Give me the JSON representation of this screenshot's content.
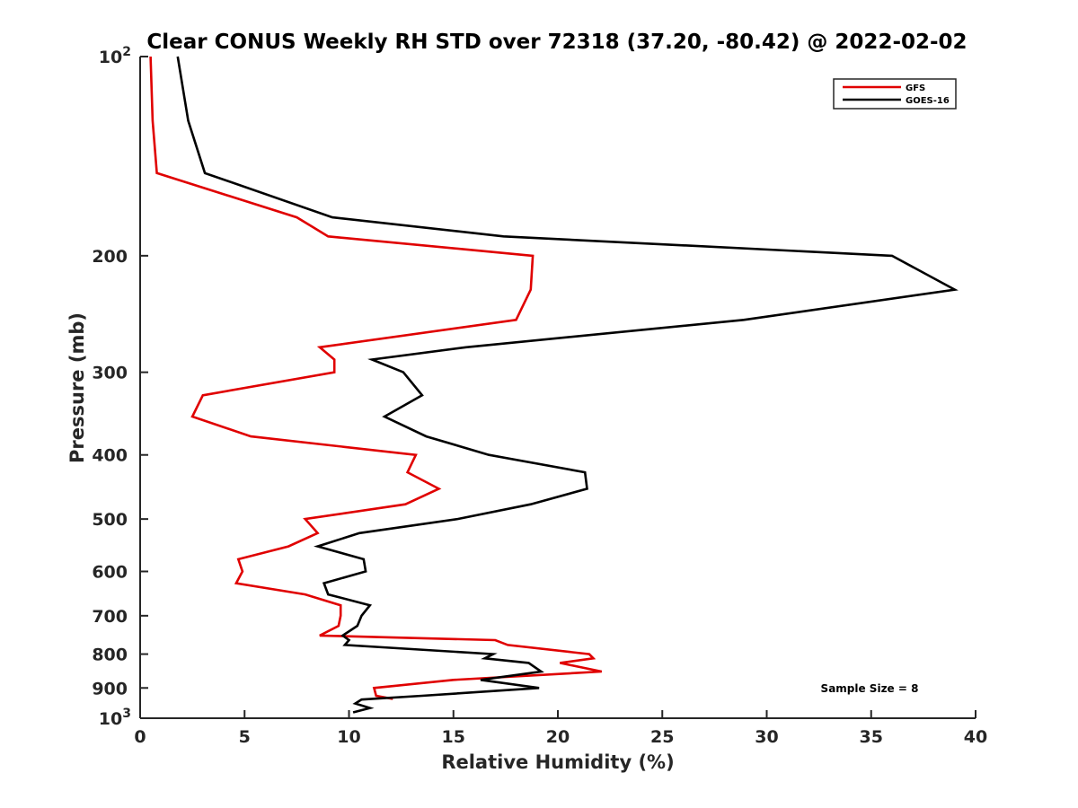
{
  "chart_data": {
    "type": "line",
    "title": "Clear CONUS Weekly RH STD over 72318 (37.20, -80.42) @ 2022-02-02",
    "xlabel": "Relative Humidity (%)",
    "ylabel": "Pressure (mb)",
    "xlim": [
      0,
      40
    ],
    "ylim": [
      100,
      1000
    ],
    "y_scale": "log",
    "y_reversed": true,
    "grid": false,
    "legend_position": "top-right",
    "x_ticks": [
      0,
      5,
      10,
      15,
      20,
      25,
      30,
      35,
      40
    ],
    "y_ticks": [
      {
        "value": 100,
        "base": "10",
        "exp": "2"
      },
      {
        "value": 200,
        "label": "200"
      },
      {
        "value": 300,
        "label": "300"
      },
      {
        "value": 400,
        "label": "400"
      },
      {
        "value": 500,
        "label": "500"
      },
      {
        "value": 600,
        "label": "600"
      },
      {
        "value": 700,
        "label": "700"
      },
      {
        "value": 800,
        "label": "800"
      },
      {
        "value": 900,
        "label": "900"
      },
      {
        "value": 1000,
        "base": "10",
        "exp": "3"
      }
    ],
    "series": [
      {
        "name": "GFS",
        "color": "#e00000",
        "points": [
          [
            0.5,
            100
          ],
          [
            0.6,
            125
          ],
          [
            0.8,
            150
          ],
          [
            7.5,
            175
          ],
          [
            9.0,
            187
          ],
          [
            18.8,
            200
          ],
          [
            18.7,
            225
          ],
          [
            18.0,
            250
          ],
          [
            8.6,
            275
          ],
          [
            9.3,
            287
          ],
          [
            9.3,
            300
          ],
          [
            3.0,
            325
          ],
          [
            2.5,
            350
          ],
          [
            5.3,
            375
          ],
          [
            13.2,
            400
          ],
          [
            12.8,
            425
          ],
          [
            14.3,
            450
          ],
          [
            12.7,
            475
          ],
          [
            7.9,
            500
          ],
          [
            8.5,
            525
          ],
          [
            7.1,
            550
          ],
          [
            4.7,
            575
          ],
          [
            4.9,
            600
          ],
          [
            4.6,
            625
          ],
          [
            7.9,
            650
          ],
          [
            9.6,
            675
          ],
          [
            9.6,
            700
          ],
          [
            9.5,
            725
          ],
          [
            8.6,
            750
          ],
          [
            17.0,
            762
          ],
          [
            17.6,
            775
          ],
          [
            21.5,
            800
          ],
          [
            21.7,
            812
          ],
          [
            20.1,
            825
          ],
          [
            22.1,
            850
          ],
          [
            15.0,
            875
          ],
          [
            11.2,
            900
          ],
          [
            11.3,
            925
          ],
          [
            12.1,
            935
          ]
        ]
      },
      {
        "name": "GOES-16",
        "color": "#000000",
        "points": [
          [
            1.8,
            100
          ],
          [
            2.3,
            125
          ],
          [
            3.1,
            150
          ],
          [
            9.2,
            175
          ],
          [
            17.4,
            187
          ],
          [
            36.0,
            200
          ],
          [
            39.0,
            225
          ],
          [
            28.9,
            250
          ],
          [
            15.6,
            275
          ],
          [
            11.1,
            287
          ],
          [
            12.6,
            300
          ],
          [
            13.5,
            325
          ],
          [
            11.7,
            350
          ],
          [
            13.7,
            375
          ],
          [
            16.7,
            400
          ],
          [
            21.3,
            425
          ],
          [
            21.4,
            450
          ],
          [
            18.7,
            475
          ],
          [
            15.2,
            500
          ],
          [
            10.5,
            525
          ],
          [
            8.5,
            550
          ],
          [
            10.7,
            575
          ],
          [
            10.8,
            600
          ],
          [
            8.8,
            625
          ],
          [
            9.0,
            650
          ],
          [
            11.0,
            675
          ],
          [
            10.6,
            700
          ],
          [
            10.4,
            725
          ],
          [
            9.7,
            750
          ],
          [
            10.0,
            762
          ],
          [
            9.8,
            775
          ],
          [
            16.9,
            800
          ],
          [
            16.5,
            812
          ],
          [
            18.6,
            825
          ],
          [
            19.2,
            850
          ],
          [
            16.3,
            875
          ],
          [
            19.1,
            900
          ],
          [
            13.5,
            925
          ],
          [
            10.6,
            937
          ],
          [
            10.3,
            950
          ],
          [
            11.0,
            965
          ],
          [
            10.2,
            980
          ]
        ]
      }
    ],
    "annotations": [
      {
        "text": "Sample Size = 8"
      }
    ]
  }
}
